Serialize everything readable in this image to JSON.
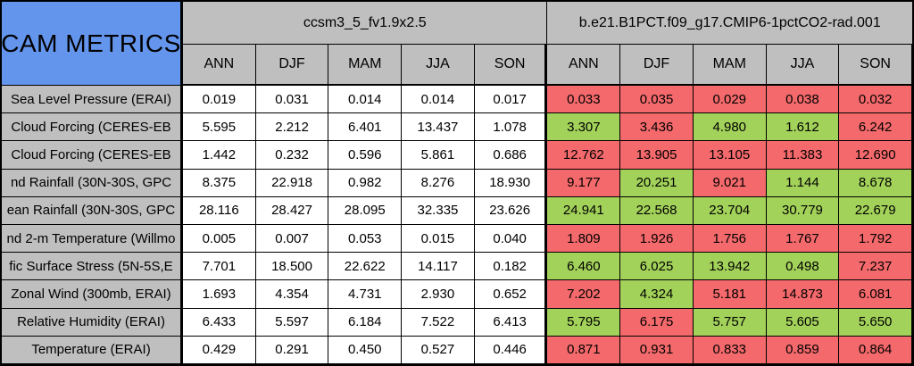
{
  "title": "CAM METRICS",
  "colors": {
    "title_bg": "#6495ed",
    "header_bg": "#bfbfbf",
    "label_bg": "#bfbfbf",
    "cell_bg": "#ffffff",
    "better_bg": "#a3d25a",
    "worse_bg": "#f4696b",
    "border": "#000000"
  },
  "models": [
    {
      "name": "ccsm3_5_fv1.9x2.5",
      "seasons": [
        "ANN",
        "DJF",
        "MAM",
        "JJA",
        "SON"
      ]
    },
    {
      "name": "b.e21.B1PCT.f09_g17.CMIP6-1pctCO2-rad.001",
      "seasons": [
        "ANN",
        "DJF",
        "MAM",
        "JJA",
        "SON"
      ]
    }
  ],
  "rows": [
    {
      "label": "Sea Level Pressure (ERAI)",
      "model1": [
        "0.019",
        "0.031",
        "0.014",
        "0.014",
        "0.017"
      ],
      "model2": [
        "0.033",
        "0.035",
        "0.029",
        "0.038",
        "0.032"
      ],
      "model2_status": [
        "worse",
        "worse",
        "worse",
        "worse",
        "worse"
      ]
    },
    {
      "label": "Cloud Forcing (CERES-EB",
      "model1": [
        "5.595",
        "2.212",
        "6.401",
        "13.437",
        "1.078"
      ],
      "model2": [
        "3.307",
        "3.436",
        "4.980",
        "1.612",
        "6.242"
      ],
      "model2_status": [
        "better",
        "worse",
        "better",
        "better",
        "worse"
      ]
    },
    {
      "label": "Cloud Forcing (CERES-EB",
      "model1": [
        "1.442",
        "0.232",
        "0.596",
        "5.861",
        "0.686"
      ],
      "model2": [
        "12.762",
        "13.905",
        "13.105",
        "11.383",
        "12.690"
      ],
      "model2_status": [
        "worse",
        "worse",
        "worse",
        "worse",
        "worse"
      ]
    },
    {
      "label": "nd Rainfall (30N-30S, GPC",
      "model1": [
        "8.375",
        "22.918",
        "0.982",
        "8.276",
        "18.930"
      ],
      "model2": [
        "9.177",
        "20.251",
        "9.021",
        "1.144",
        "8.678"
      ],
      "model2_status": [
        "worse",
        "better",
        "worse",
        "better",
        "better"
      ]
    },
    {
      "label": "ean Rainfall (30N-30S, GPC",
      "model1": [
        "28.116",
        "28.427",
        "28.095",
        "32.335",
        "23.626"
      ],
      "model2": [
        "24.941",
        "22.568",
        "23.704",
        "30.779",
        "22.679"
      ],
      "model2_status": [
        "better",
        "better",
        "better",
        "better",
        "better"
      ]
    },
    {
      "label": "nd 2-m Temperature (Willmo",
      "model1": [
        "0.005",
        "0.007",
        "0.053",
        "0.015",
        "0.040"
      ],
      "model2": [
        "1.809",
        "1.926",
        "1.756",
        "1.767",
        "1.792"
      ],
      "model2_status": [
        "worse",
        "worse",
        "worse",
        "worse",
        "worse"
      ]
    },
    {
      "label": "fic Surface Stress (5N-5S,E",
      "model1": [
        "7.701",
        "18.500",
        "22.622",
        "14.117",
        "0.182"
      ],
      "model2": [
        "6.460",
        "6.025",
        "13.942",
        "0.498",
        "7.237"
      ],
      "model2_status": [
        "better",
        "better",
        "better",
        "better",
        "worse"
      ]
    },
    {
      "label": "Zonal Wind (300mb, ERAI)",
      "model1": [
        "1.693",
        "4.354",
        "4.731",
        "2.930",
        "0.652"
      ],
      "model2": [
        "7.202",
        "4.324",
        "5.181",
        "14.873",
        "6.081"
      ],
      "model2_status": [
        "worse",
        "better",
        "worse",
        "worse",
        "worse"
      ]
    },
    {
      "label": "Relative Humidity (ERAI)",
      "model1": [
        "6.433",
        "5.597",
        "6.184",
        "7.522",
        "6.413"
      ],
      "model2": [
        "5.795",
        "6.175",
        "5.757",
        "5.605",
        "5.650"
      ],
      "model2_status": [
        "better",
        "worse",
        "better",
        "better",
        "better"
      ]
    },
    {
      "label": "Temperature (ERAI)",
      "model1": [
        "0.429",
        "0.291",
        "0.450",
        "0.527",
        "0.446"
      ],
      "model2": [
        "0.871",
        "0.931",
        "0.833",
        "0.859",
        "0.864"
      ],
      "model2_status": [
        "worse",
        "worse",
        "worse",
        "worse",
        "worse"
      ]
    }
  ]
}
